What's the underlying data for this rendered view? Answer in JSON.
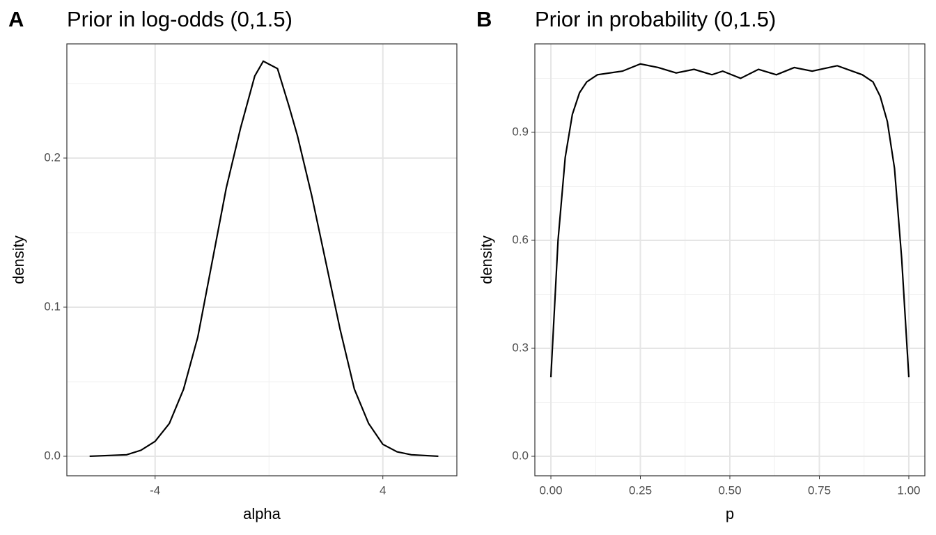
{
  "chart_data": [
    {
      "type": "line",
      "panel_label": "A",
      "title": "Prior in log-odds (0,1.5)",
      "x_label": "alpha",
      "y_label": "density",
      "x": [
        -6.3,
        -5,
        -4.5,
        -4,
        -3.5,
        -3,
        -2.5,
        -2,
        -1.5,
        -1,
        -0.5,
        -0.2,
        0,
        0.3,
        0.7,
        1,
        1.5,
        2,
        2.5,
        3,
        3.5,
        4,
        4.5,
        5,
        5.95
      ],
      "values": [
        0,
        0.001,
        0.004,
        0.01,
        0.022,
        0.045,
        0.08,
        0.13,
        0.18,
        0.22,
        0.255,
        0.265,
        0.263,
        0.26,
        0.235,
        0.215,
        0.175,
        0.13,
        0.085,
        0.045,
        0.022,
        0.008,
        0.003,
        0.001,
        0
      ],
      "color": "#000000",
      "xlim": [
        -7.1,
        6.6
      ],
      "xticks": [
        -4,
        4
      ],
      "ylim": [
        -0.0131,
        0.2766
      ],
      "yticks": [
        {
          "value": 0,
          "label": "0.0"
        },
        0.1,
        0.2
      ],
      "grid": true
    },
    {
      "type": "line",
      "panel_label": "B",
      "title": "Prior in probability (0,1.5)",
      "x_label": "p",
      "y_label": "density",
      "x": [
        0,
        0.02,
        0.04,
        0.06,
        0.08,
        0.1,
        0.13,
        0.2,
        0.25,
        0.3,
        0.35,
        0.4,
        0.45,
        0.48,
        0.53,
        0.58,
        0.63,
        0.68,
        0.73,
        0.8,
        0.87,
        0.9,
        0.92,
        0.94,
        0.96,
        0.98,
        1.0
      ],
      "values": [
        0.22,
        0.6,
        0.83,
        0.95,
        1.01,
        1.04,
        1.06,
        1.07,
        1.09,
        1.08,
        1.065,
        1.075,
        1.06,
        1.07,
        1.05,
        1.075,
        1.06,
        1.08,
        1.07,
        1.085,
        1.06,
        1.04,
        1.0,
        0.93,
        0.8,
        0.55,
        0.22
      ],
      "color": "#000000",
      "xlim": [
        -0.0448,
        1.0448
      ],
      "xticks": [
        {
          "value": 0,
          "label": "0.00"
        },
        0.25,
        {
          "value": 0.5,
          "label": "0.50"
        },
        0.75,
        {
          "value": 1,
          "label": "1.00"
        }
      ],
      "ylim": [
        -0.0542,
        1.1457
      ],
      "yticks": [
        {
          "value": 0,
          "label": "0.0"
        },
        0.3,
        0.6,
        0.9
      ],
      "grid": true
    }
  ]
}
